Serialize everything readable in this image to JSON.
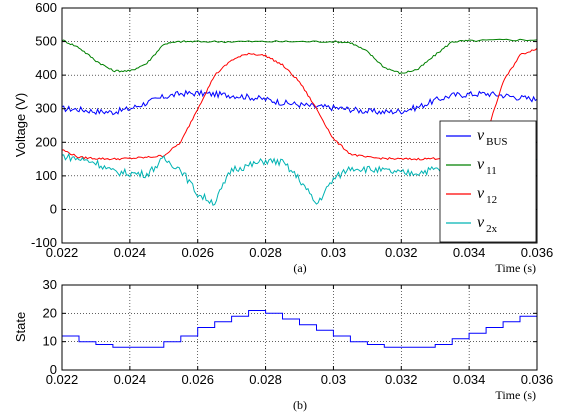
{
  "chart_data": [
    {
      "type": "line",
      "caption": "(a)",
      "xlabel": "Time (s)",
      "ylabel": "Voltage (V)",
      "xlim": [
        0.022,
        0.036
      ],
      "ylim": [
        -100,
        600
      ],
      "x_ticks": [
        "0.022",
        "0.024",
        "0.026",
        "0.028",
        "0.03",
        "0.032",
        "0.034",
        "0.036"
      ],
      "y_ticks": [
        "-100",
        "0",
        "100",
        "200",
        "300",
        "400",
        "500",
        "600"
      ],
      "grid": true,
      "legend_position": "bottom-right",
      "series": [
        {
          "name": "v",
          "sub": "BUS",
          "color": "#0000ff",
          "x": [
            0.022,
            0.0225,
            0.023,
            0.0235,
            0.024,
            0.0245,
            0.025,
            0.0255,
            0.026,
            0.0265,
            0.027,
            0.0275,
            0.028,
            0.0285,
            0.029,
            0.0295,
            0.03,
            0.0305,
            0.031,
            0.0315,
            0.032,
            0.0325,
            0.033,
            0.0335,
            0.034,
            0.0345,
            0.035,
            0.0355,
            0.036
          ],
          "y": [
            300,
            298,
            292,
            290,
            300,
            318,
            335,
            345,
            346,
            343,
            340,
            335,
            328,
            318,
            312,
            306,
            303,
            298,
            292,
            290,
            293,
            305,
            325,
            340,
            343,
            345,
            340,
            333,
            328
          ]
        },
        {
          "name": "v",
          "sub": "11",
          "color": "#008000",
          "x": [
            0.022,
            0.0225,
            0.023,
            0.0235,
            0.024,
            0.0245,
            0.025,
            0.0255,
            0.026,
            0.027,
            0.028,
            0.029,
            0.03,
            0.0305,
            0.031,
            0.0315,
            0.032,
            0.0325,
            0.033,
            0.0335,
            0.034,
            0.035,
            0.036
          ],
          "y": [
            505,
            482,
            443,
            413,
            412,
            435,
            493,
            500,
            500,
            500,
            500,
            500,
            500,
            497,
            470,
            423,
            405,
            418,
            460,
            500,
            502,
            505,
            505
          ]
        },
        {
          "name": "v",
          "sub": "12",
          "color": "#ff0000",
          "x": [
            0.022,
            0.0225,
            0.023,
            0.0235,
            0.024,
            0.0245,
            0.025,
            0.0255,
            0.026,
            0.0265,
            0.027,
            0.0275,
            0.028,
            0.0285,
            0.029,
            0.0295,
            0.03,
            0.0305,
            0.031,
            0.0315,
            0.032,
            0.0325,
            0.033,
            0.0335,
            0.034,
            0.0345,
            0.035,
            0.0355,
            0.036
          ],
          "y": [
            178,
            155,
            152,
            150,
            152,
            155,
            160,
            200,
            300,
            400,
            445,
            465,
            458,
            430,
            380,
            300,
            210,
            165,
            155,
            152,
            150,
            150,
            152,
            155,
            160,
            220,
            380,
            460,
            480
          ]
        },
        {
          "name": "v",
          "sub": "2x",
          "color": "#00b3b3",
          "x": [
            0.022,
            0.0225,
            0.023,
            0.0235,
            0.024,
            0.0245,
            0.025,
            0.0255,
            0.026,
            0.0265,
            0.027,
            0.0275,
            0.028,
            0.0285,
            0.029,
            0.0295,
            0.03,
            0.0305,
            0.031,
            0.0315,
            0.032,
            0.0325,
            0.033,
            0.0335,
            0.034,
            0.0345,
            0.035,
            0.0355,
            0.036
          ],
          "y": [
            160,
            150,
            140,
            112,
            108,
            105,
            150,
            120,
            45,
            20,
            120,
            130,
            145,
            140,
            90,
            15,
            90,
            125,
            120,
            115,
            108,
            110,
            120,
            115,
            120,
            125,
            130,
            140,
            150
          ]
        }
      ]
    },
    {
      "type": "line",
      "caption": "(b)",
      "xlabel": "Time (s)",
      "ylabel": "State",
      "xlim": [
        0.022,
        0.036
      ],
      "ylim": [
        0,
        30
      ],
      "x_ticks": [
        "0.022",
        "0.024",
        "0.026",
        "0.028",
        "0.03",
        "0.032",
        "0.034",
        "0.036"
      ],
      "y_ticks": [
        "0",
        "10",
        "20",
        "30"
      ],
      "grid": true,
      "series": [
        {
          "color": "#0000ff",
          "step": true,
          "x": [
            0.022,
            0.0225,
            0.023,
            0.0235,
            0.024,
            0.0245,
            0.025,
            0.0255,
            0.026,
            0.0265,
            0.027,
            0.0275,
            0.028,
            0.0285,
            0.029,
            0.0295,
            0.03,
            0.0305,
            0.031,
            0.0315,
            0.032,
            0.0325,
            0.033,
            0.0335,
            0.034,
            0.0345,
            0.035,
            0.0355,
            0.036
          ],
          "y": [
            12,
            10,
            9,
            8,
            8,
            8,
            10,
            12,
            15,
            17,
            19,
            21,
            20,
            18,
            16,
            14,
            12,
            10,
            9,
            8,
            8,
            8,
            9,
            11,
            13,
            15,
            17,
            19,
            21
          ]
        }
      ]
    }
  ]
}
